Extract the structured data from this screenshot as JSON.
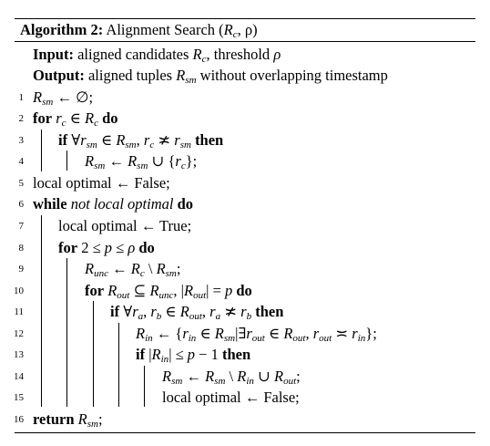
{
  "algorithm": {
    "label": "Algorithm 2:",
    "title": "Alignment Search (",
    "title_args_R": "R",
    "title_args_sub": "c",
    "title_args_rest": ", ρ)"
  },
  "io": {
    "input_label": "Input:",
    "input_text_a": "aligned candidates ",
    "input_R": "R",
    "input_R_sub": "c",
    "input_text_b": ", threshold ",
    "input_rho": "ρ",
    "output_label": "Output:",
    "output_text_a": "aligned tuples ",
    "output_R": "R",
    "output_R_sub": "sm",
    "output_text_b": " without overlapping timestamp"
  },
  "lines": [
    {
      "n": "1",
      "text": "R_sm ← ∅;"
    },
    {
      "n": "2",
      "text": "for r_c ∈ R_c do"
    },
    {
      "n": "3",
      "text": "if ∀r_sm ∈ R_sm, r_c ≭ r_sm then"
    },
    {
      "n": "4",
      "text": "R_sm ← R_sm ∪ {r_c};"
    },
    {
      "n": "5",
      "text": "local optimal ← False;"
    },
    {
      "n": "6",
      "text": "while not local optimal do"
    },
    {
      "n": "7",
      "text": "local optimal ← True;"
    },
    {
      "n": "8",
      "text": "for 2 ≤ p ≤ ρ do"
    },
    {
      "n": "9",
      "text": "R_unc ← R_c \\ R_sm;"
    },
    {
      "n": "10",
      "text": "for R_out ⊆ R_unc, |R_out| = p do"
    },
    {
      "n": "11",
      "text": "if ∀r_a, r_b ∈ R_out, r_a ≭ r_b then"
    },
    {
      "n": "12",
      "text": "R_in ← {r_in ∈ R_sm|∃r_out ∈ R_out, r_out ≍ r_in};"
    },
    {
      "n": "13",
      "text": "if |R_in| ≤ p − 1 then"
    },
    {
      "n": "14",
      "text": "R_sm ← R_sm \\ R_in ∪ R_out;"
    },
    {
      "n": "15",
      "text": "local optimal ← False;"
    },
    {
      "n": "16",
      "text": "return R_sm;"
    }
  ]
}
